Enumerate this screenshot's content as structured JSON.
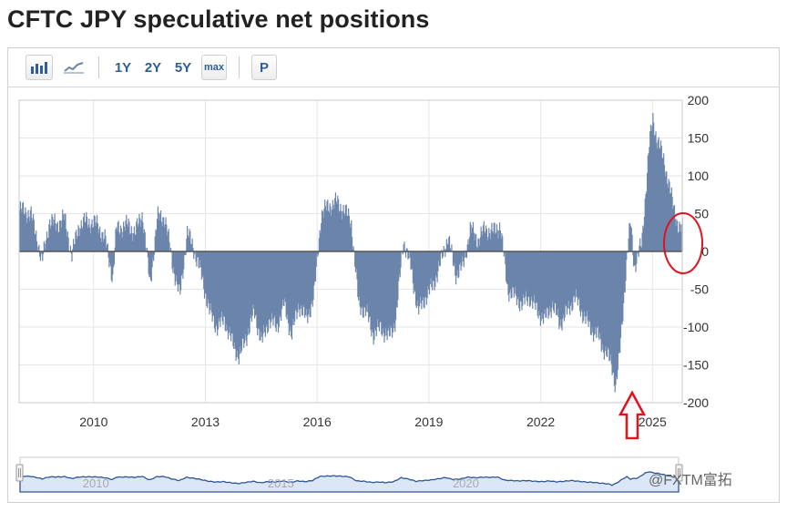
{
  "page": {
    "title": "CFTC JPY speculative net positions"
  },
  "toolbar": {
    "bar_chart_label": "bar-chart",
    "line_chart_label": "line-chart",
    "range_1y": "1Y",
    "range_2y": "2Y",
    "range_5y": "5Y",
    "range_max": "max",
    "print_label": "P"
  },
  "colors": {
    "bar": "#6b84ab",
    "grid": "#e6e6e6",
    "annotation": "#e0141e",
    "navigator_fill": "#dbe6f7",
    "navigator_line": "#2f5596"
  },
  "chart_data": {
    "type": "bar",
    "title": "CFTC JPY speculative net positions",
    "ylim": [
      -200,
      200
    ],
    "y_ticks": [
      200,
      150,
      100,
      50,
      0,
      -50,
      -100,
      -150,
      -200
    ],
    "x_range": [
      2008.0,
      2025.8
    ],
    "x_ticks": [
      {
        "year": 2010,
        "label": "2010"
      },
      {
        "year": 2013,
        "label": "2013"
      },
      {
        "year": 2016,
        "label": "2016"
      },
      {
        "year": 2019,
        "label": "2019"
      },
      {
        "year": 2022,
        "label": "2022"
      },
      {
        "year": 2025,
        "label": "2025"
      }
    ],
    "grid": true,
    "series": [
      {
        "points": [
          [
            2008.0,
            55
          ],
          [
            2008.3,
            50
          ],
          [
            2008.5,
            10
          ],
          [
            2008.6,
            -15
          ],
          [
            2008.8,
            40
          ],
          [
            2009.0,
            35
          ],
          [
            2009.2,
            45
          ],
          [
            2009.4,
            -5
          ],
          [
            2009.6,
            35
          ],
          [
            2009.8,
            40
          ],
          [
            2010.1,
            35
          ],
          [
            2010.3,
            15
          ],
          [
            2010.5,
            -35
          ],
          [
            2010.6,
            30
          ],
          [
            2010.9,
            35
          ],
          [
            2011.1,
            25
          ],
          [
            2011.3,
            50
          ],
          [
            2011.5,
            -45
          ],
          [
            2011.7,
            45
          ],
          [
            2011.9,
            45
          ],
          [
            2012.1,
            -15
          ],
          [
            2012.3,
            -60
          ],
          [
            2012.5,
            25
          ],
          [
            2012.7,
            0
          ],
          [
            2012.9,
            -35
          ],
          [
            2013.1,
            -80
          ],
          [
            2013.3,
            -100
          ],
          [
            2013.5,
            -90
          ],
          [
            2013.7,
            -120
          ],
          [
            2013.9,
            -140
          ],
          [
            2014.1,
            -110
          ],
          [
            2014.3,
            -80
          ],
          [
            2014.5,
            -120
          ],
          [
            2014.7,
            -90
          ],
          [
            2014.9,
            -100
          ],
          [
            2015.1,
            -70
          ],
          [
            2015.3,
            -110
          ],
          [
            2015.5,
            -70
          ],
          [
            2015.7,
            -90
          ],
          [
            2015.9,
            -60
          ],
          [
            2016.1,
            50
          ],
          [
            2016.3,
            60
          ],
          [
            2016.5,
            65
          ],
          [
            2016.7,
            55
          ],
          [
            2016.9,
            40
          ],
          [
            2017.1,
            -70
          ],
          [
            2017.3,
            -80
          ],
          [
            2017.5,
            -110
          ],
          [
            2017.7,
            -100
          ],
          [
            2017.9,
            -115
          ],
          [
            2018.1,
            -90
          ],
          [
            2018.3,
            15
          ],
          [
            2018.5,
            -20
          ],
          [
            2018.7,
            -80
          ],
          [
            2018.9,
            -60
          ],
          [
            2019.1,
            -45
          ],
          [
            2019.3,
            -15
          ],
          [
            2019.5,
            20
          ],
          [
            2019.7,
            -30
          ],
          [
            2019.9,
            -20
          ],
          [
            2020.1,
            30
          ],
          [
            2020.3,
            15
          ],
          [
            2020.5,
            30
          ],
          [
            2020.7,
            25
          ],
          [
            2020.9,
            35
          ],
          [
            2021.1,
            -50
          ],
          [
            2021.3,
            -60
          ],
          [
            2021.5,
            -70
          ],
          [
            2021.7,
            -60
          ],
          [
            2021.9,
            -80
          ],
          [
            2022.1,
            -90
          ],
          [
            2022.3,
            -70
          ],
          [
            2022.5,
            -95
          ],
          [
            2022.7,
            -80
          ],
          [
            2022.9,
            -60
          ],
          [
            2023.1,
            -80
          ],
          [
            2023.3,
            -100
          ],
          [
            2023.5,
            -110
          ],
          [
            2023.7,
            -130
          ],
          [
            2023.9,
            -150
          ],
          [
            2024.0,
            -180
          ],
          [
            2024.1,
            -140
          ],
          [
            2024.3,
            -10
          ],
          [
            2024.4,
            40
          ],
          [
            2024.5,
            -20
          ],
          [
            2024.7,
            10
          ],
          [
            2024.9,
            140
          ],
          [
            2025.0,
            175
          ],
          [
            2025.1,
            150
          ],
          [
            2025.3,
            120
          ],
          [
            2025.5,
            70
          ],
          [
            2025.7,
            30
          ]
        ]
      }
    ],
    "navigator_ticks": [
      {
        "year": 2010,
        "label": "2010"
      },
      {
        "year": 2015,
        "label": "2015"
      },
      {
        "year": 2020,
        "label": "2020"
      }
    ]
  },
  "watermark": {
    "text": "@FXTM富拓"
  }
}
